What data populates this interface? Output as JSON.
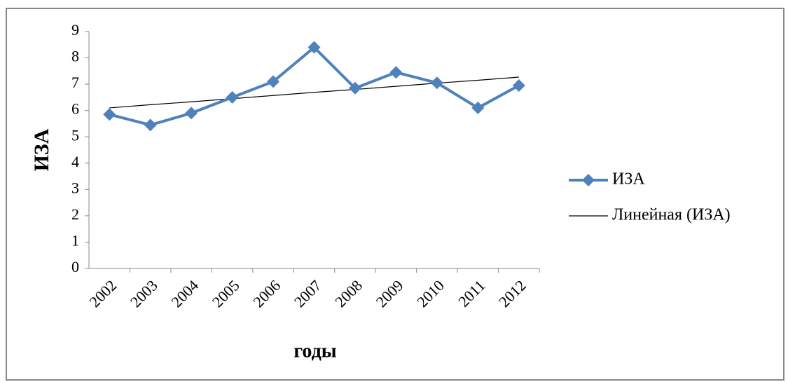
{
  "chart_data": {
    "type": "line",
    "categories": [
      "2002",
      "2003",
      "2004",
      "2005",
      "2006",
      "2007",
      "2008",
      "2009",
      "2010",
      "2011",
      "2012"
    ],
    "series": [
      {
        "name": "ИЗА",
        "color": "#4f81bd",
        "values": [
          5.85,
          5.45,
          5.9,
          6.5,
          7.1,
          8.4,
          6.85,
          7.45,
          7.05,
          6.1,
          6.95
        ]
      },
      {
        "name": "Линейная (ИЗА)",
        "color": "#000000",
        "values": [
          6.1,
          6.22,
          6.33,
          6.45,
          6.57,
          6.69,
          6.8,
          6.92,
          7.04,
          7.15,
          7.27
        ]
      }
    ],
    "x_label": "годы",
    "y_label": "ИЗА",
    "ylim": [
      0,
      9
    ],
    "yticks": [
      0,
      1,
      2,
      3,
      4,
      5,
      6,
      7,
      8,
      9
    ],
    "legend": "right"
  }
}
